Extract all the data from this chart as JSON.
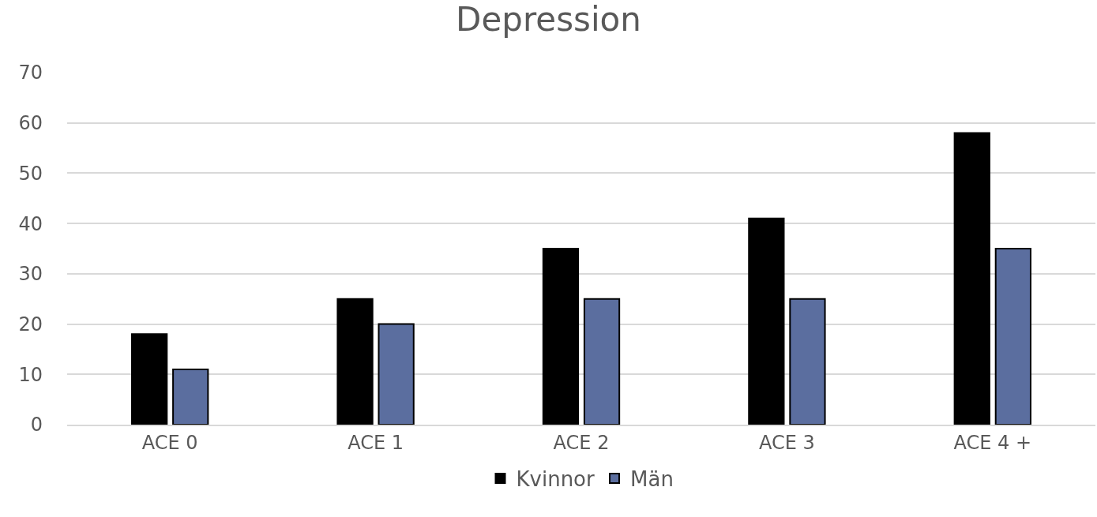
{
  "chart_data": {
    "type": "bar",
    "title": "Depression",
    "categories": [
      "ACE 0",
      "ACE 1",
      "ACE 2",
      "ACE 3",
      "ACE 4 +"
    ],
    "series": [
      {
        "name": "Kvinnor",
        "color": "#000000",
        "values": [
          18,
          25,
          35,
          41,
          58
        ]
      },
      {
        "name": "Män",
        "color": "#5b6e9f",
        "values": [
          11,
          20,
          25,
          25,
          35
        ]
      }
    ],
    "ylim": [
      0,
      70
    ],
    "yticks": [
      0,
      10,
      20,
      30,
      40,
      50,
      60,
      70
    ],
    "grid": "y",
    "legend": "bottom"
  }
}
